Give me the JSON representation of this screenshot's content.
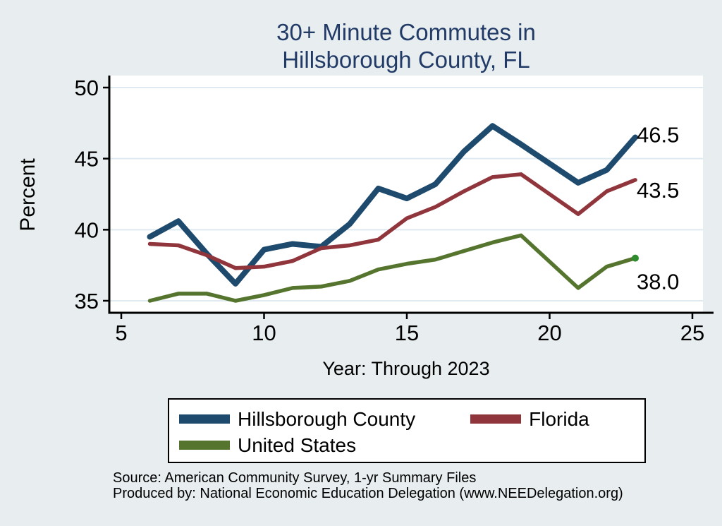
{
  "title": {
    "line1": "30+ Minute Commutes in",
    "line2": "Hillsborough County, FL"
  },
  "axes": {
    "y_label": "Percent",
    "x_label": "Year: Through 2023",
    "y_ticks": [
      35,
      40,
      45,
      50
    ],
    "x_ticks": [
      5,
      10,
      15,
      20,
      25
    ]
  },
  "chart_data": {
    "type": "line",
    "title": "30+ Minute Commutes in Hillsborough County, FL",
    "xlabel": "Year: Through 2023",
    "ylabel": "Percent",
    "xlim": [
      5,
      25
    ],
    "ylim": [
      35,
      50
    ],
    "grid": "horizontal",
    "legend_position": "bottom-box",
    "x_note": "x axis = survey year 6..23 (2006-2023); year 20 (2020) has no data point, line bridges 19 to 21",
    "x": [
      6,
      7,
      8,
      9,
      10,
      11,
      12,
      13,
      14,
      15,
      16,
      17,
      18,
      19,
      21,
      22,
      23
    ],
    "series": [
      {
        "name": "Hillsborough County",
        "color": "#1e4a6e",
        "line_width": 8,
        "values": [
          39.5,
          40.6,
          38.3,
          36.2,
          38.6,
          39.0,
          38.8,
          40.4,
          42.9,
          42.2,
          43.2,
          45.5,
          47.3,
          46.0,
          43.3,
          44.2,
          46.5
        ],
        "end_label": "46.5"
      },
      {
        "name": "Florida",
        "color": "#90353b",
        "line_width": 5.5,
        "values": [
          39.0,
          38.9,
          38.2,
          37.3,
          37.4,
          37.8,
          38.7,
          38.9,
          39.3,
          40.8,
          41.6,
          42.7,
          43.7,
          43.9,
          41.1,
          42.7,
          43.5
        ],
        "end_label": "43.5"
      },
      {
        "name": "United States",
        "color": "#55752f",
        "line_width": 5.5,
        "values": [
          35.0,
          35.5,
          35.5,
          35.0,
          35.4,
          35.9,
          36.0,
          36.4,
          37.2,
          37.6,
          37.9,
          38.5,
          39.1,
          39.6,
          35.9,
          37.4,
          38.0
        ],
        "end_label": "38.0",
        "end_marker": true,
        "end_marker_color": "#2e8b2e"
      }
    ]
  },
  "legend": {
    "items": [
      "Hillsborough County",
      "Florida",
      "United States"
    ]
  },
  "footer": {
    "line1": "Source: American Community Survey, 1-yr Summary Files",
    "line2": "Produced by: National Economic Education Delegation (www.NEEDelegation.org)"
  },
  "colors": {
    "background": "#e8eef0",
    "plot_background": "#ffffff",
    "gridline": "#dfeaf0",
    "axis": "#000000",
    "title": "#213a66"
  }
}
